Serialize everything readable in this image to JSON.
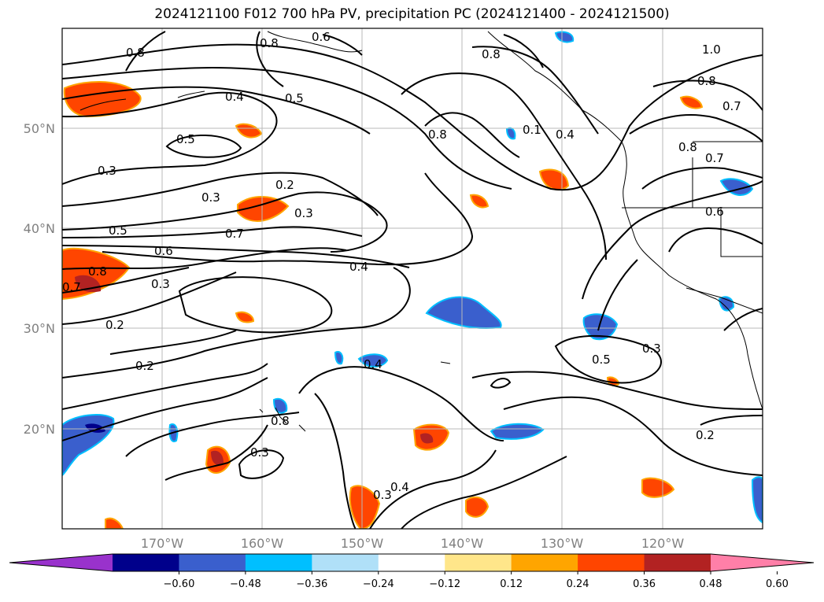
{
  "title": "2024121100 F012 700 hPa PV, precipitation PC (2024121400 - 2024121500)",
  "lat_labels": [
    "50°N",
    "40°N",
    "30°N",
    "20°N"
  ],
  "lon_labels": [
    "170°W",
    "160°W",
    "150°W",
    "140°W",
    "130°W",
    "120°W"
  ],
  "contour_labels": [
    "0.8",
    "0.8",
    "0.6",
    "0.8",
    "1.0",
    "0.8",
    "0.7",
    "0.4",
    "0.5",
    "0.8",
    "0.1",
    "0.4",
    "0.5",
    "0.3",
    "0.3",
    "0.2",
    "0.3",
    "0.5",
    "0.7",
    "0.6",
    "0.8",
    "0.7",
    "0.3",
    "0.4",
    "0.2",
    "0.2",
    "0.4",
    "0.8",
    "0.3",
    "0.3",
    "0.4",
    "0.5",
    "0.3",
    "0.2",
    "0.8",
    "0.7",
    "0.6"
  ],
  "colorbar": {
    "ticks": [
      "−0.60",
      "−0.48",
      "−0.36",
      "−0.24",
      "−0.12",
      "0.12",
      "0.24",
      "0.36",
      "0.48",
      "0.60"
    ],
    "colors": [
      "#9932cc",
      "#00008b",
      "#3a5fcd",
      "#00bfff",
      "#b0e0f8",
      "#ffffff",
      "#ffe68a",
      "#ffa500",
      "#ff4500",
      "#b22222",
      "#ff7fa8"
    ]
  }
}
